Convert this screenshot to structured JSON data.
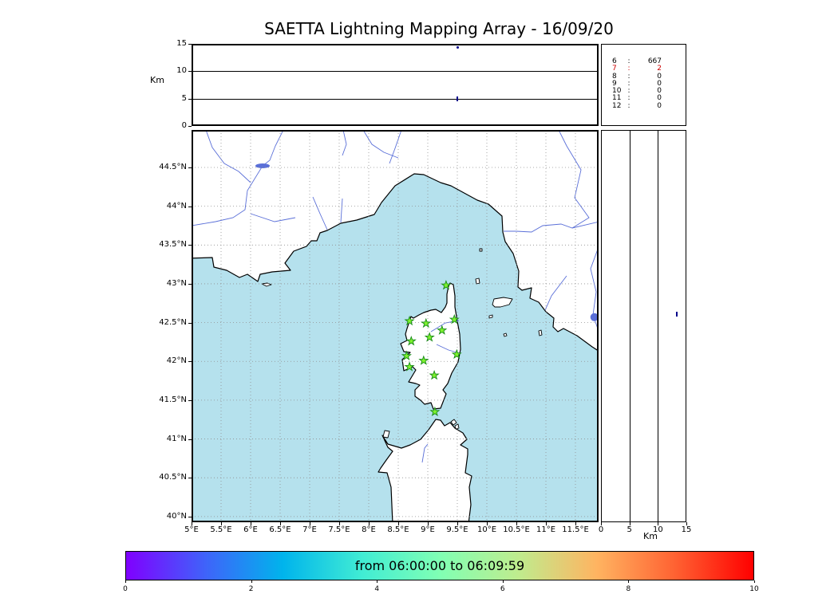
{
  "title": "SAETTA Lightning Mapping Array - 16/09/20",
  "colors": {
    "sea": "#b5e1ed",
    "land": "#ffffff",
    "coast": "#000000",
    "river": "#5a6fd8",
    "grid": "#909090",
    "station_fill": "#7ff32f",
    "station_edge": "#178a17",
    "point": "#00008b",
    "highlight_red": "#cc0000"
  },
  "chart_data": [
    {
      "panel": "altitude_vs_longitude",
      "type": "scatter",
      "ylabel": "Km",
      "ylim": [
        0,
        15
      ],
      "yticks": [
        0,
        5,
        10,
        15
      ],
      "grid_y": [
        5,
        10
      ],
      "points": [
        {
          "lon": 9.5,
          "alt_km": 14.3,
          "marker": "dot"
        },
        {
          "lon": 9.5,
          "alt_km": 5.0,
          "marker": "dash"
        }
      ]
    },
    {
      "panel": "source_counts",
      "type": "table",
      "rows": [
        {
          "label": "6",
          "value": "667",
          "highlight": false
        },
        {
          "label": "7",
          "value": "2",
          "highlight": true
        },
        {
          "label": "8",
          "value": "0",
          "highlight": false
        },
        {
          "label": "9",
          "value": "0",
          "highlight": false
        },
        {
          "label": "10",
          "value": "0",
          "highlight": false
        },
        {
          "label": "11",
          "value": "0",
          "highlight": false
        },
        {
          "label": "12",
          "value": "0",
          "highlight": false
        }
      ]
    },
    {
      "panel": "map",
      "type": "map_scatter",
      "lon_range": [
        5.0,
        11.89
      ],
      "lat_range": [
        39.93,
        44.98
      ],
      "lon_ticks": [
        "5°E",
        "5.5°E",
        "6°E",
        "6.5°E",
        "7°E",
        "7.5°E",
        "8°E",
        "8.5°E",
        "9°E",
        "9.5°E",
        "10°E",
        "10.5°E",
        "11°E",
        "11.5°E"
      ],
      "lat_ticks": [
        "44.5°N",
        "44°N",
        "43.5°N",
        "43°N",
        "42.5°N",
        "42°N",
        "41.5°N",
        "41°N",
        "40.5°N",
        "40°N"
      ],
      "stations_lon_lat": [
        [
          9.31,
          42.98
        ],
        [
          8.69,
          42.52
        ],
        [
          8.97,
          42.49
        ],
        [
          9.24,
          42.4
        ],
        [
          9.45,
          42.54
        ],
        [
          8.72,
          42.26
        ],
        [
          9.03,
          42.31
        ],
        [
          8.64,
          42.07
        ],
        [
          8.93,
          42.01
        ],
        [
          9.49,
          42.09
        ],
        [
          8.69,
          41.93
        ],
        [
          9.11,
          41.82
        ],
        [
          9.12,
          41.35
        ]
      ],
      "lake_point_lon_lat": [
        11.82,
        42.57
      ]
    },
    {
      "panel": "altitude_vs_latitude",
      "type": "scatter",
      "xlabel": "Km",
      "xlim": [
        0,
        15
      ],
      "xticks": [
        0,
        5,
        10,
        15
      ],
      "grid_x": [
        5,
        10
      ],
      "points": [
        {
          "lat": 42.61,
          "alt_km": 13.3,
          "marker": "dash"
        }
      ]
    },
    {
      "panel": "time_colorbar",
      "type": "colorbar",
      "label": "from 06:00:00 to 06:09:59",
      "ticks": [
        0,
        2,
        4,
        6,
        8,
        10
      ],
      "colormap": "rainbow",
      "gradient": [
        "#8000ff",
        "#4062fa",
        "#00b4ec",
        "#40ecd4",
        "#80ffb4",
        "#bfec8e",
        "#ffb461",
        "#ff6232",
        "#ff0000"
      ]
    }
  ]
}
